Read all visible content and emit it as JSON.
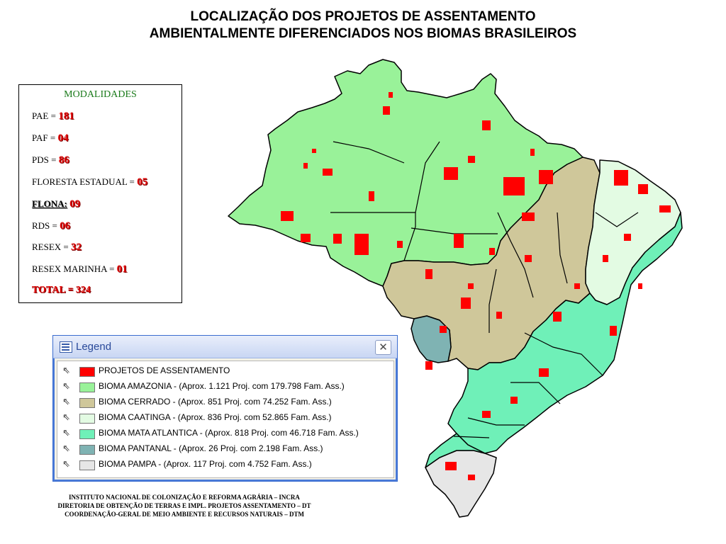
{
  "title": {
    "line1": "LOCALIZAÇÃO DOS PROJETOS DE ASSENTAMENTO",
    "line2": "AMBIENTALMENTE DIFERENCIADOS NOS BIOMAS BRASILEIROS"
  },
  "modalidades": {
    "heading": "MODALIDADES",
    "rows": [
      {
        "label": "PAE = ",
        "value": "181"
      },
      {
        "label": "PAF = ",
        "value": "04"
      },
      {
        "label": "PDS = ",
        "value": "86"
      },
      {
        "label": "FLORESTA ESTADUAL = ",
        "value": "05"
      },
      {
        "label": "FLONA:",
        "value": "09"
      },
      {
        "label": "RDS = ",
        "value": "06"
      },
      {
        "label": "RESEX = ",
        "value": "32"
      },
      {
        "label": "RESEX MARINHA = ",
        "value": "01"
      }
    ],
    "total": "TOTAL = 324"
  },
  "legend": {
    "window_title": "Legend",
    "close_glyph": "✕",
    "items": [
      {
        "label": "PROJETOS DE ASSENTAMENTO",
        "color": "#ff0000"
      },
      {
        "label": "BIOMA  AMAZONIA - (Aprox. 1.121 Proj. com 179.798 Fam. Ass.)",
        "color": "#99f299"
      },
      {
        "label": "BIOMA  CERRADO - (Aprox. 851 Proj. com 74.252 Fam. Ass.)",
        "color": "#cfc79a"
      },
      {
        "label": "BIOMA  CAATINGA - (Aprox. 836 Proj. com 52.865 Fam. Ass.)",
        "color": "#e3fbe3"
      },
      {
        "label": "BIOMA   MATA  ATLANTICA - (Aprox. 818 Proj. com 46.718 Fam. Ass.)",
        "color": "#6ff0b8"
      },
      {
        "label": "BIOMA  PANTANAL - (Aprox. 26 Proj. com 2.198 Fam. Ass.)",
        "color": "#7fb3b3"
      },
      {
        "label": "BIOMA  PAMPA - (Aprox. 117 Proj. com 4.752 Fam. Ass.)",
        "color": "#e6e6e6"
      }
    ]
  },
  "footer": {
    "line1": "INSTITUTO NACIONAL DE COLONIZAÇÃO E REFORMA AGRÁRIA – INCRA",
    "line2": "DIRETORIA DE OBTENÇÃO DE TERRAS E IMPL. PROJETOS ASSENTAMENTO – DT",
    "line3": "COORDENAÇÃO-GERAL DE MEIO AMBIENTE E RECURSOS NATURAIS – DTM"
  },
  "map_colors": {
    "amazonia": "#99f299",
    "cerrado": "#cfc79a",
    "caatinga": "#e3fbe3",
    "mata_atlantica": "#6ff0b8",
    "pantanal": "#7fb3b3",
    "pampa": "#e6e6e6",
    "assentamento": "#ff0000"
  }
}
